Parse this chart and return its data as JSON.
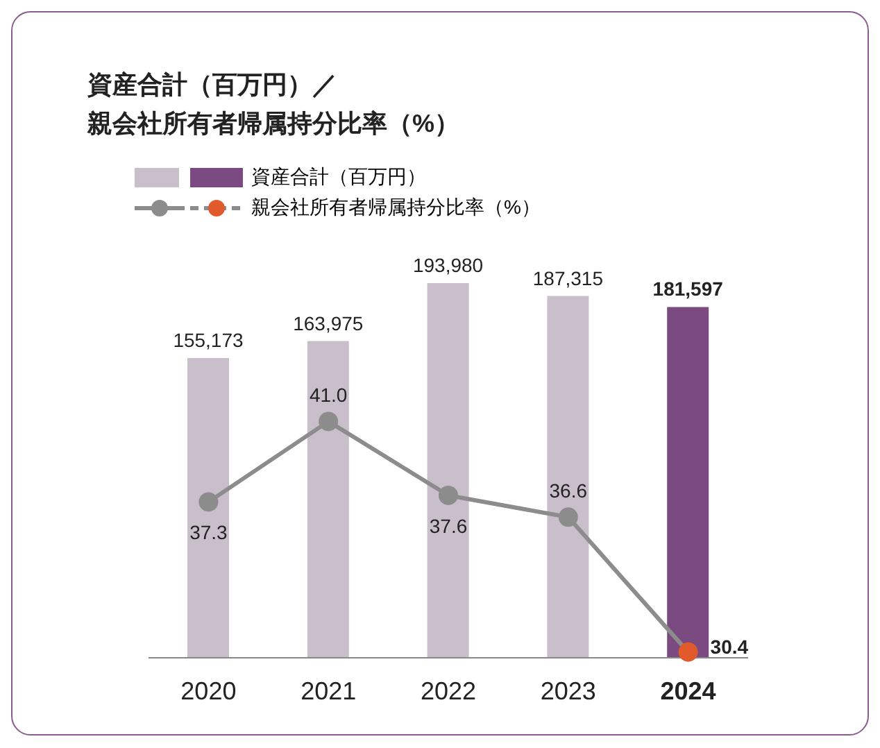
{
  "chart_data": {
    "type": "bar",
    "title": "資産合計（百万円）／",
    "subtitle": "親会社所有者帰属持分比率（%）",
    "categories": [
      "2020",
      "2021",
      "2022",
      "2023",
      "2024"
    ],
    "series": [
      {
        "name": "資産合計（百万円）",
        "colors": [
          "#c8bfcb",
          "#c8bfcb",
          "#c8bfcb",
          "#c8bfcb",
          "#7b4a80"
        ],
        "values": [
          155173,
          163975,
          193980,
          187315,
          181597
        ],
        "value_labels": [
          "155,173",
          "163,975",
          "193,980",
          "187,315",
          "181,597"
        ]
      },
      {
        "type": "line",
        "name": "親会社所有者帰属持分比率（%）",
        "axis": "y2",
        "color": "#8c8c8c",
        "colors": [
          "#8c8c8c",
          "#8c8c8c",
          "#8c8c8c",
          "#8c8c8c",
          "#e05a2b"
        ],
        "values": [
          37.3,
          41.0,
          37.6,
          36.6,
          30.4
        ],
        "value_labels": [
          "37.3",
          "41.0",
          "37.6",
          "36.6",
          "30.4"
        ]
      }
    ],
    "legend": "top left",
    "marker": "circle",
    "line_style": "solid",
    "data_labels": true
  }
}
